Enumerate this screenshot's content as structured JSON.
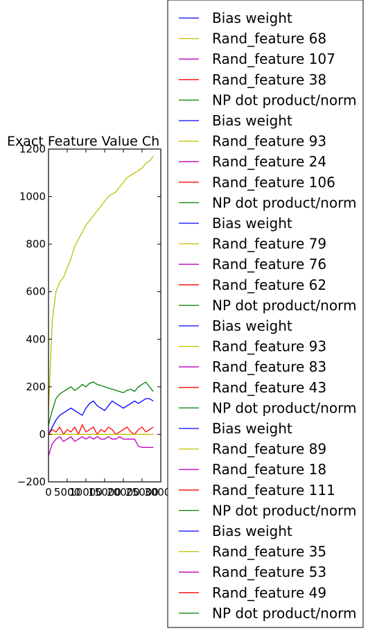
{
  "chart_data": {
    "type": "line",
    "title": "Exact Feature Value Ch",
    "xlabel": "",
    "ylabel": "",
    "xlim": [
      0,
      30000
    ],
    "ylim": [
      -200,
      1200
    ],
    "x_ticks": [
      "0",
      "5000",
      "10000",
      "15000",
      "20000",
      "25000",
      "30000"
    ],
    "y_ticks": [
      "−200",
      "0",
      "200",
      "400",
      "600",
      "800",
      "1000",
      "1200"
    ],
    "grid": false,
    "legend_position": "right, outside plot",
    "x": [
      0,
      1000,
      2000,
      3000,
      4000,
      5000,
      6000,
      7000,
      8000,
      9000,
      10000,
      11000,
      12000,
      13000,
      14000,
      15000,
      16000,
      17000,
      18000,
      19000,
      20000,
      21000,
      22000,
      23000,
      24000,
      25000,
      26000,
      27000,
      28000
    ],
    "series": [
      {
        "name": "Rand_feature 68",
        "color": "#bfbf00",
        "values": [
          100,
          480,
          600,
          640,
          660,
          700,
          740,
          790,
          820,
          850,
          880,
          900,
          920,
          940,
          960,
          980,
          1000,
          1010,
          1020,
          1040,
          1060,
          1080,
          1090,
          1100,
          1110,
          1120,
          1140,
          1150,
          1170
        ]
      },
      {
        "name": "NP dot product/norm",
        "color": "#008000",
        "values": [
          40,
          100,
          150,
          170,
          180,
          190,
          200,
          185,
          195,
          210,
          200,
          215,
          220,
          210,
          205,
          200,
          195,
          190,
          185,
          180,
          175,
          185,
          190,
          180,
          200,
          210,
          220,
          200,
          180
        ]
      },
      {
        "name": "Bias weight",
        "color": "#0000ff",
        "values": [
          0,
          30,
          60,
          80,
          90,
          100,
          110,
          100,
          90,
          80,
          110,
          130,
          140,
          120,
          110,
          100,
          120,
          140,
          130,
          120,
          110,
          120,
          130,
          140,
          130,
          140,
          150,
          150,
          140
        ]
      },
      {
        "name": "Rand_feature 38",
        "color": "#ff0000",
        "values": [
          0,
          20,
          10,
          30,
          0,
          20,
          10,
          30,
          0,
          40,
          10,
          20,
          30,
          0,
          20,
          10,
          30,
          20,
          0,
          10,
          20,
          30,
          10,
          0,
          20,
          30,
          10,
          20,
          30
        ]
      },
      {
        "name": "Rand_feature 107",
        "color": "#bf00bf",
        "values": [
          -90,
          -40,
          -20,
          -10,
          -30,
          -20,
          -10,
          -30,
          -20,
          -10,
          -20,
          -10,
          -20,
          -10,
          -20,
          -20,
          -10,
          -20,
          -20,
          -10,
          -20,
          -20,
          -20,
          -20,
          -50,
          -55,
          -55,
          -55,
          -55
        ]
      }
    ],
    "legend": [
      {
        "label": "Bias weight",
        "color": "#0000ff"
      },
      {
        "label": "Rand_feature 68",
        "color": "#bfbf00"
      },
      {
        "label": "Rand_feature 107",
        "color": "#bf00bf"
      },
      {
        "label": "Rand_feature 38",
        "color": "#ff0000"
      },
      {
        "label": "NP dot product/norm",
        "color": "#008000"
      },
      {
        "label": "Bias weight",
        "color": "#0000ff"
      },
      {
        "label": "Rand_feature 93",
        "color": "#bfbf00"
      },
      {
        "label": "Rand_feature 24",
        "color": "#bf00bf"
      },
      {
        "label": "Rand_feature 106",
        "color": "#ff0000"
      },
      {
        "label": "NP dot product/norm",
        "color": "#008000"
      },
      {
        "label": "Bias weight",
        "color": "#0000ff"
      },
      {
        "label": "Rand_feature 79",
        "color": "#bfbf00"
      },
      {
        "label": "Rand_feature 76",
        "color": "#bf00bf"
      },
      {
        "label": "Rand_feature 62",
        "color": "#ff0000"
      },
      {
        "label": "NP dot product/norm",
        "color": "#008000"
      },
      {
        "label": "Bias weight",
        "color": "#0000ff"
      },
      {
        "label": "Rand_feature 93",
        "color": "#bfbf00"
      },
      {
        "label": "Rand_feature 83",
        "color": "#bf00bf"
      },
      {
        "label": "Rand_feature 43",
        "color": "#ff0000"
      },
      {
        "label": "NP dot product/norm",
        "color": "#008000"
      },
      {
        "label": "Bias weight",
        "color": "#0000ff"
      },
      {
        "label": "Rand_feature 89",
        "color": "#bfbf00"
      },
      {
        "label": "Rand_feature 18",
        "color": "#bf00bf"
      },
      {
        "label": "Rand_feature 111",
        "color": "#ff0000"
      },
      {
        "label": "NP dot product/norm",
        "color": "#008000"
      },
      {
        "label": "Bias weight",
        "color": "#0000ff"
      },
      {
        "label": "Rand_feature 35",
        "color": "#bfbf00"
      },
      {
        "label": "Rand_feature 53",
        "color": "#bf00bf"
      },
      {
        "label": "Rand_feature 49",
        "color": "#ff0000"
      },
      {
        "label": "NP dot product/norm",
        "color": "#008000"
      }
    ]
  }
}
